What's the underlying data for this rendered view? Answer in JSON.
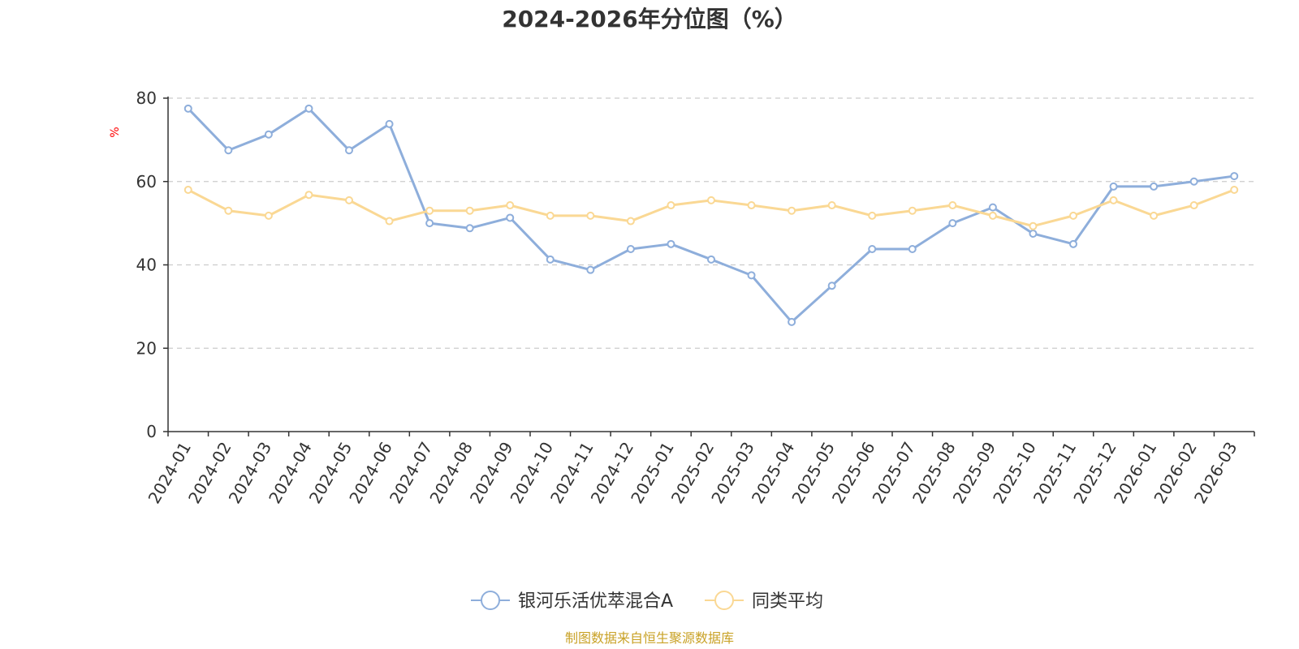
{
  "chart_data": {
    "type": "line",
    "title": "2024-2026年分位图（%）",
    "ylabel": "%",
    "ylim": [
      0,
      80
    ],
    "yticks": [
      0,
      20,
      40,
      60,
      80
    ],
    "grid": true,
    "legend_position": "bottom",
    "categories": [
      "2024-01",
      "2024-02",
      "2024-03",
      "2024-04",
      "2024-05",
      "2024-06",
      "2024-07",
      "2024-08",
      "2024-09",
      "2024-10",
      "2024-11",
      "2024-12",
      "2025-01",
      "2025-02",
      "2025-03",
      "2025-04",
      "2025-05",
      "2025-06",
      "2025-07",
      "2025-08",
      "2025-09",
      "2025-10",
      "2025-11",
      "2025-12",
      "2026-01",
      "2026-02",
      "2026-03"
    ],
    "series": [
      {
        "name": "银河乐活优萃混合A",
        "color": "#8eaedb",
        "values": [
          77.5,
          67.5,
          71.3,
          77.5,
          67.5,
          73.8,
          50.0,
          48.8,
          51.3,
          41.3,
          38.8,
          43.8,
          45.0,
          41.3,
          37.5,
          26.3,
          35.0,
          43.8,
          43.8,
          50.0,
          53.8,
          47.5,
          45.0,
          58.8,
          58.8,
          60.0,
          61.3
        ]
      },
      {
        "name": "同类平均",
        "color": "#fad894",
        "values": [
          58.0,
          53.0,
          51.8,
          56.8,
          55.5,
          50.5,
          53.0,
          53.0,
          54.3,
          51.8,
          51.8,
          50.5,
          54.3,
          55.5,
          54.3,
          53.0,
          54.3,
          51.8,
          53.0,
          54.3,
          51.8,
          49.3,
          51.8,
          55.5,
          51.8,
          54.3,
          58.0
        ]
      }
    ]
  },
  "source_text": "制图数据来自恒生聚源数据库",
  "colors": {
    "axis": "#333333",
    "grid": "#cccccc",
    "unit": "#ff0000",
    "source": "#c9a227"
  }
}
